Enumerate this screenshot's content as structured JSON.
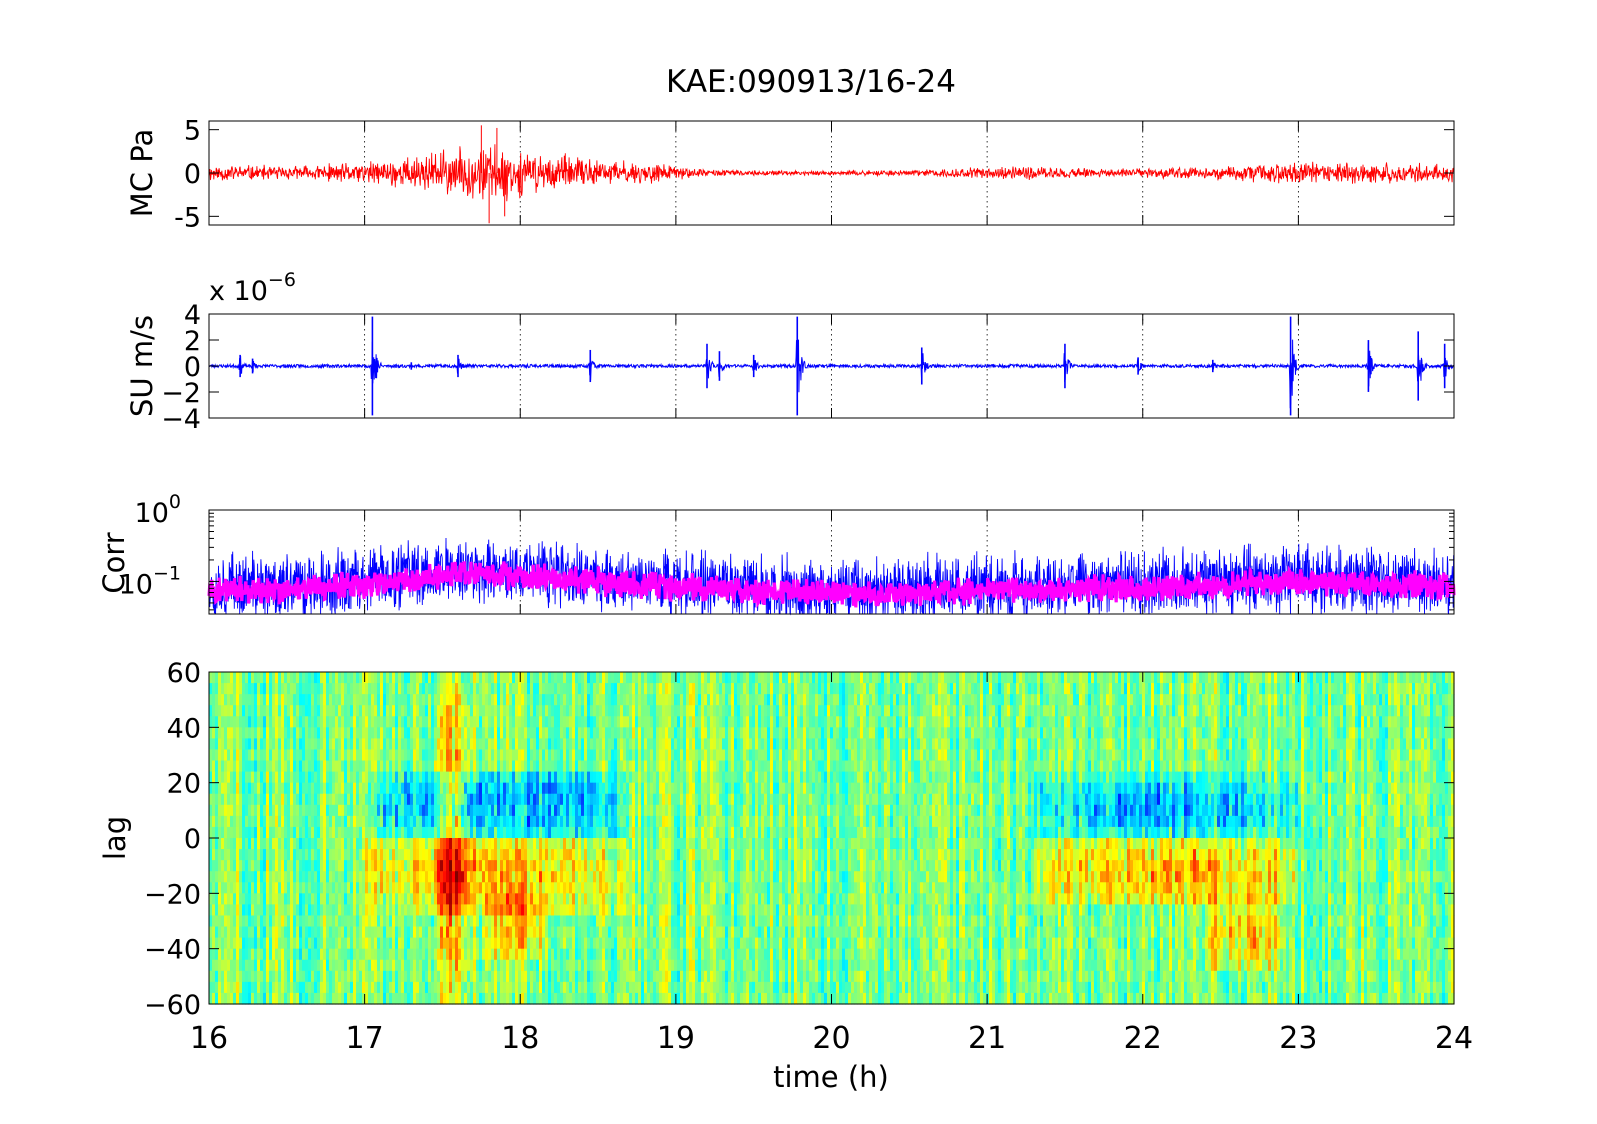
{
  "figure": {
    "title": "KAE:090913/16-24",
    "xlabel": "time (h)",
    "xlim": [
      16,
      24
    ],
    "xticks": [
      "16",
      "17",
      "18",
      "19",
      "20",
      "21",
      "22",
      "23",
      "24"
    ]
  },
  "chart_data": [
    {
      "type": "line",
      "panel": "mc-pressure",
      "ylabel": "MC Pa",
      "ylim": [
        -6,
        6
      ],
      "yticks": [
        "5",
        "0",
        "-5"
      ],
      "grid": "vertical-dotted",
      "line_color": "#ff0000",
      "envelope": {
        "x": [
          16,
          16.5,
          17,
          17.3,
          17.5,
          17.7,
          17.8,
          18,
          18.5,
          18.9,
          19.1,
          19.5,
          20,
          20.5,
          21,
          21.3,
          21.6,
          22,
          22.5,
          23,
          23.5,
          24
        ],
        "amplitude": [
          1.2,
          0.9,
          1.4,
          2.3,
          3.0,
          3.6,
          4.0,
          3.0,
          1.8,
          1.3,
          0.6,
          0.3,
          0.3,
          0.4,
          0.8,
          0.9,
          0.6,
          0.6,
          0.9,
          1.6,
          1.3,
          1.2
        ]
      },
      "spikes": [
        {
          "x": 17.75,
          "y": 5.5
        },
        {
          "x": 17.8,
          "y": -5.8
        },
        {
          "x": 17.85,
          "y": 5.2
        },
        {
          "x": 17.9,
          "y": -5.0
        }
      ]
    },
    {
      "type": "line",
      "panel": "su-velocity",
      "ylabel": "SU m/s",
      "multiplier": {
        "prefix": "x 10",
        "exponent": "−6"
      },
      "ylim": [
        -4,
        4
      ],
      "yticks": [
        "4",
        "2",
        "0",
        "−2",
        "−4"
      ],
      "grid": "vertical-dotted",
      "line_color": "#0000ff",
      "baseline_amplitude": 0.12,
      "events": [
        {
          "x": 16.2,
          "a": 0.9
        },
        {
          "x": 16.28,
          "a": 0.6
        },
        {
          "x": 17.05,
          "a": 4.0
        },
        {
          "x": 17.3,
          "a": 0.3
        },
        {
          "x": 17.6,
          "a": 0.9
        },
        {
          "x": 18.45,
          "a": 1.3
        },
        {
          "x": 19.2,
          "a": 1.8
        },
        {
          "x": 19.28,
          "a": 1.2
        },
        {
          "x": 19.5,
          "a": 0.9
        },
        {
          "x": 19.78,
          "a": 4.0
        },
        {
          "x": 20.58,
          "a": 1.5
        },
        {
          "x": 21.5,
          "a": 1.8
        },
        {
          "x": 21.97,
          "a": 0.7
        },
        {
          "x": 22.45,
          "a": 0.5
        },
        {
          "x": 22.95,
          "a": 4.0
        },
        {
          "x": 23.45,
          "a": 2.1
        },
        {
          "x": 23.77,
          "a": 2.8
        },
        {
          "x": 23.94,
          "a": 1.8
        }
      ]
    },
    {
      "type": "line",
      "panel": "correlation",
      "ylabel": "Corr",
      "yscale": "log",
      "ylim": [
        0.035,
        1
      ],
      "yticks": [
        {
          "base": "10",
          "exponent": "0",
          "value": 1
        },
        {
          "base": "10",
          "exponent": "−1",
          "value": 0.1
        }
      ],
      "grid": "vertical-dotted",
      "series": [
        {
          "color": "#0000ff",
          "level": {
            "x": [
              16,
              16.5,
              17,
              17.5,
              17.8,
              18,
              18.5,
              19,
              19.5,
              20,
              20.5,
              21,
              21.5,
              22,
              22.5,
              23,
              23.5,
              24
            ],
            "y": [
              0.085,
              0.085,
              0.1,
              0.14,
              0.15,
              0.13,
              0.11,
              0.095,
              0.08,
              0.075,
              0.075,
              0.085,
              0.085,
              0.09,
              0.1,
              0.11,
              0.1,
              0.095
            ]
          }
        },
        {
          "color": "#ff00ff",
          "level": {
            "x": [
              16,
              16.5,
              17,
              17.5,
              17.8,
              18,
              18.5,
              19,
              19.5,
              20,
              20.5,
              21,
              21.5,
              22,
              22.5,
              23,
              23.5,
              24
            ],
            "y": [
              0.075,
              0.075,
              0.09,
              0.12,
              0.13,
              0.115,
              0.1,
              0.085,
              0.072,
              0.068,
              0.068,
              0.075,
              0.075,
              0.08,
              0.09,
              0.1,
              0.09,
              0.085
            ]
          }
        }
      ]
    },
    {
      "type": "heatmap",
      "panel": "lag-correlogram",
      "ylabel": "lag",
      "ylim": [
        -60,
        60
      ],
      "yticks": [
        "60",
        "40",
        "20",
        "0",
        "−20",
        "−40",
        "−60"
      ],
      "colormap": "jet",
      "features": [
        {
          "x0": 17.0,
          "x1": 18.7,
          "y0": 0,
          "y1": 25,
          "value": -0.55
        },
        {
          "x0": 17.0,
          "x1": 18.7,
          "y0": -28,
          "y1": 0,
          "value": 0.5
        },
        {
          "x0": 17.45,
          "x1": 17.7,
          "y0": -60,
          "y1": 60,
          "value": 0.6
        },
        {
          "x0": 17.75,
          "x1": 18.2,
          "y0": -45,
          "y1": -20,
          "value": 0.45
        },
        {
          "x0": 21.3,
          "x1": 23.0,
          "y0": 0,
          "y1": 22,
          "value": -0.5
        },
        {
          "x0": 21.3,
          "x1": 23.0,
          "y0": -25,
          "y1": 0,
          "value": 0.5
        },
        {
          "x0": 22.4,
          "x1": 22.9,
          "y0": -48,
          "y1": -22,
          "value": 0.45
        }
      ]
    }
  ]
}
